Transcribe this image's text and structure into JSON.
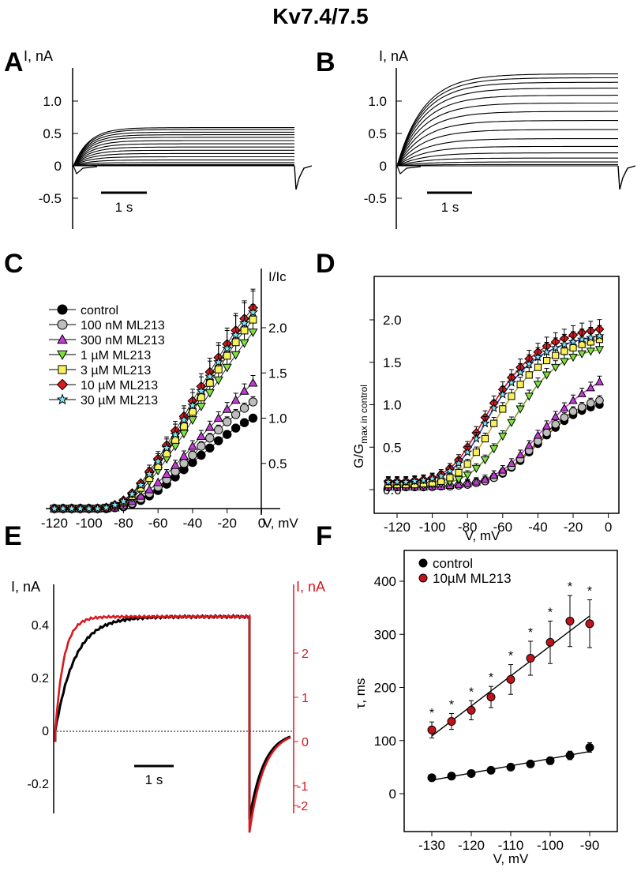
{
  "title": "Kv7.4/7.5",
  "colors": {
    "black": "#000000",
    "red": "#d71920",
    "grey": "#bdbdbd",
    "magenta": "#c23bd4",
    "green": "#7ee040",
    "yellow": "#f7f25a",
    "cyan": "#7fe7f4",
    "blue": "#1f3fbf",
    "darkred": "#c0141c"
  },
  "panels": {
    "A": "A",
    "B": "B",
    "C": "C",
    "D": "D",
    "E": "E",
    "F": "F"
  },
  "chart_data": [
    {
      "panel": "A",
      "type": "line",
      "description_of_traces": "family of current traces, control",
      "ylabel": "I, nA",
      "yticks": [
        "1.0",
        "0.5",
        "0",
        "-0.5"
      ],
      "ylim": [
        -0.95,
        1.55
      ],
      "scalebar": "1 s",
      "trace_steady_levels_nA": [
        0.0,
        0.0,
        0.0,
        0.01,
        0.02,
        0.05,
        0.09,
        0.14,
        0.19,
        0.24,
        0.29,
        0.34,
        0.39,
        0.44,
        0.48,
        0.52,
        0.56,
        0.59
      ]
    },
    {
      "panel": "B",
      "type": "line",
      "description_of_traces": "family of current traces, ML213",
      "ylabel": "I, nA",
      "yticks": [
        "1.0",
        "0.5",
        "0",
        "-0.5"
      ],
      "ylim": [
        -0.95,
        1.55
      ],
      "scalebar": "1 s",
      "trace_steady_levels_nA": [
        0.0,
        0.02,
        0.06,
        0.12,
        0.2,
        0.3,
        0.42,
        0.56,
        0.7,
        0.84,
        0.97,
        1.09,
        1.2,
        1.29,
        1.36,
        1.42
      ]
    },
    {
      "panel": "C",
      "type": "scatter",
      "xlabel": "V, mV",
      "ylabel": "I/Ic",
      "xticks": [
        -120,
        -100,
        -80,
        -60,
        -40,
        -20,
        0
      ],
      "yticks": [
        0.5,
        1.0,
        1.5,
        2.0
      ],
      "xlim": [
        -125,
        3
      ],
      "ylim": [
        -0.05,
        2.55
      ],
      "legend_position": "top-left",
      "x": [
        -120,
        -115,
        -110,
        -105,
        -100,
        -95,
        -90,
        -85,
        -80,
        -75,
        -70,
        -65,
        -60,
        -55,
        -50,
        -45,
        -40,
        -35,
        -30,
        -25,
        -20,
        -15,
        -10,
        -5
      ],
      "series": [
        {
          "name": "control",
          "values": [
            0,
            0,
            0,
            0,
            0,
            0,
            0,
            0.01,
            0.02,
            0.05,
            0.09,
            0.14,
            0.2,
            0.27,
            0.35,
            0.43,
            0.51,
            0.59,
            0.67,
            0.75,
            0.82,
            0.89,
            0.95,
            1.0
          ]
        },
        {
          "name": "100 nM ML213",
          "values": [
            0,
            0,
            0,
            0,
            0,
            0,
            0,
            0.01,
            0.03,
            0.06,
            0.11,
            0.17,
            0.24,
            0.32,
            0.41,
            0.5,
            0.59,
            0.69,
            0.78,
            0.87,
            0.96,
            1.04,
            1.11,
            1.18
          ]
        },
        {
          "name": "300 nM ML213",
          "values": [
            0,
            0,
            0,
            0,
            0,
            0,
            0,
            0.01,
            0.04,
            0.08,
            0.14,
            0.21,
            0.29,
            0.38,
            0.48,
            0.58,
            0.69,
            0.8,
            0.9,
            1.0,
            1.1,
            1.2,
            1.3,
            1.39
          ]
        },
        {
          "name": "1 µM ML213",
          "values": [
            0,
            0,
            0,
            0,
            0,
            0,
            0.01,
            0.03,
            0.06,
            0.12,
            0.2,
            0.3,
            0.42,
            0.55,
            0.69,
            0.83,
            0.98,
            1.13,
            1.28,
            1.42,
            1.56,
            1.7,
            1.83,
            1.95
          ]
        },
        {
          "name": "3 µM ML213",
          "values": [
            0,
            0,
            0,
            0,
            0,
            0,
            0.01,
            0.03,
            0.07,
            0.14,
            0.23,
            0.34,
            0.47,
            0.61,
            0.76,
            0.91,
            1.07,
            1.23,
            1.39,
            1.54,
            1.69,
            1.84,
            1.97,
            2.09
          ]
        },
        {
          "name": "10 µM ML213",
          "values": [
            0,
            0,
            0,
            0,
            0,
            0,
            0.01,
            0.04,
            0.09,
            0.17,
            0.28,
            0.41,
            0.55,
            0.7,
            0.86,
            1.02,
            1.19,
            1.35,
            1.51,
            1.67,
            1.82,
            1.97,
            2.1,
            2.22
          ]
        },
        {
          "name": "30 µM ML213",
          "values": [
            0,
            0,
            0,
            0,
            0,
            0,
            0.01,
            0.04,
            0.08,
            0.16,
            0.26,
            0.38,
            0.52,
            0.67,
            0.82,
            0.98,
            1.14,
            1.3,
            1.46,
            1.62,
            1.77,
            1.92,
            2.05,
            2.17
          ]
        }
      ],
      "series_colors": [
        "#000000",
        "#bdbdbd",
        "#c23bd4",
        "#7ee040",
        "#f7f25a",
        "#d71920",
        "#7fe7f4"
      ],
      "series_markers": [
        "circle",
        "circle",
        "triangle-up",
        "triangle-down",
        "square",
        "diamond",
        "star"
      ]
    },
    {
      "panel": "D",
      "type": "scatter",
      "xlabel": "V, mV",
      "ylabel": "G/G",
      "ylabel_subscript": "max in control",
      "xticks": [
        -120,
        -100,
        -80,
        -60,
        -40,
        -20,
        0
      ],
      "yticks": [
        0.0,
        0.5,
        1.0,
        1.5,
        2.0
      ],
      "xlim": [
        -133,
        6
      ],
      "ylim": [
        -0.2,
        2.35
      ],
      "x": [
        -125,
        -120,
        -115,
        -110,
        -105,
        -100,
        -95,
        -90,
        -85,
        -80,
        -75,
        -70,
        -65,
        -60,
        -55,
        -50,
        -45,
        -40,
        -35,
        -30,
        -25,
        -20,
        -15,
        -10,
        -5
      ],
      "series": [
        {
          "name": "control",
          "values": [
            0.03,
            0.03,
            0.03,
            0.03,
            0.03,
            0.03,
            0.04,
            0.04,
            0.05,
            0.06,
            0.08,
            0.1,
            0.14,
            0.19,
            0.26,
            0.34,
            0.44,
            0.54,
            0.64,
            0.73,
            0.81,
            0.88,
            0.93,
            0.97,
            1.0
          ]
        },
        {
          "name": "100 nM ML213",
          "values": [
            0.03,
            0.03,
            0.03,
            0.03,
            0.03,
            0.03,
            0.04,
            0.04,
            0.05,
            0.06,
            0.08,
            0.1,
            0.14,
            0.2,
            0.27,
            0.36,
            0.46,
            0.57,
            0.67,
            0.77,
            0.85,
            0.92,
            0.97,
            1.02,
            1.05
          ]
        },
        {
          "name": "300 nM ML213",
          "values": [
            0.03,
            0.03,
            0.03,
            0.03,
            0.03,
            0.04,
            0.04,
            0.05,
            0.06,
            0.07,
            0.09,
            0.12,
            0.17,
            0.23,
            0.31,
            0.41,
            0.52,
            0.64,
            0.75,
            0.86,
            0.96,
            1.05,
            1.13,
            1.2,
            1.27
          ]
        },
        {
          "name": "1 µM ML213",
          "values": [
            0.05,
            0.05,
            0.05,
            0.05,
            0.05,
            0.06,
            0.07,
            0.09,
            0.12,
            0.17,
            0.25,
            0.35,
            0.48,
            0.63,
            0.79,
            0.95,
            1.1,
            1.24,
            1.35,
            1.44,
            1.51,
            1.56,
            1.6,
            1.63,
            1.65
          ]
        },
        {
          "name": "3 µM ML213",
          "values": [
            0.06,
            0.06,
            0.06,
            0.06,
            0.07,
            0.08,
            0.1,
            0.14,
            0.2,
            0.3,
            0.44,
            0.6,
            0.78,
            0.95,
            1.1,
            1.24,
            1.35,
            1.44,
            1.52,
            1.58,
            1.63,
            1.67,
            1.71,
            1.74,
            1.77
          ]
        },
        {
          "name": "10 µM ML213",
          "values": [
            0.1,
            0.1,
            0.1,
            0.11,
            0.12,
            0.14,
            0.18,
            0.25,
            0.35,
            0.5,
            0.67,
            0.85,
            1.02,
            1.18,
            1.32,
            1.44,
            1.54,
            1.62,
            1.69,
            1.74,
            1.78,
            1.82,
            1.85,
            1.87,
            1.89
          ]
        },
        {
          "name": "30 µM ML213",
          "values": [
            0.09,
            0.09,
            0.09,
            0.1,
            0.11,
            0.13,
            0.16,
            0.22,
            0.31,
            0.44,
            0.6,
            0.78,
            0.96,
            1.12,
            1.26,
            1.38,
            1.48,
            1.56,
            1.62,
            1.67,
            1.71,
            1.74,
            1.77,
            1.79,
            1.81
          ]
        }
      ],
      "series_colors": [
        "#000000",
        "#bdbdbd",
        "#c23bd4",
        "#7ee040",
        "#f7f25a",
        "#d71920",
        "#7fe7f4"
      ],
      "series_markers": [
        "circle",
        "circle",
        "triangle-up",
        "triangle-down",
        "square",
        "diamond",
        "star"
      ]
    },
    {
      "panel": "E",
      "type": "line",
      "ylabel": "I, nA",
      "ylabel_right": "I, nA",
      "yticks": [
        "0.4",
        "0.2",
        "0",
        "-0.2"
      ],
      "yticks_right": [
        "2",
        "1",
        "0",
        "-1",
        "-2"
      ],
      "ylim": [
        -0.42,
        0.47
      ],
      "scalebar": "1 s",
      "series": [
        {
          "color": "#000000",
          "peak_nA": 0.43,
          "tail_nA": -0.33,
          "tau_rel": 0.1
        },
        {
          "color": "#d71920",
          "peak_nA": 0.43,
          "tail_nA": -0.38,
          "tau_rel": 0.045
        }
      ]
    },
    {
      "panel": "F",
      "type": "scatter",
      "xlabel": "V, mV",
      "ylabel": "τ, ms",
      "xticks": [
        -130,
        -120,
        -110,
        -100,
        -90
      ],
      "yticks": [
        0,
        100,
        200,
        300,
        400
      ],
      "xlim": [
        -137,
        -83
      ],
      "ylim": [
        -100,
        460
      ],
      "legend_position": "top-left",
      "significance_marker": "*",
      "x": [
        -130,
        -125,
        -120,
        -115,
        -110,
        -105,
        -100,
        -95,
        -90
      ],
      "series": [
        {
          "name": "control",
          "values": [
            30,
            33,
            38,
            44,
            50,
            56,
            62,
            72,
            87
          ],
          "errors": [
            4,
            4,
            5,
            5,
            5,
            6,
            7,
            8,
            9
          ]
        },
        {
          "name": "10µM ML213",
          "values": [
            120,
            136,
            157,
            182,
            215,
            255,
            285,
            325,
            320
          ],
          "errors": [
            15,
            15,
            18,
            20,
            28,
            32,
            40,
            48,
            45
          ]
        }
      ]
    }
  ]
}
